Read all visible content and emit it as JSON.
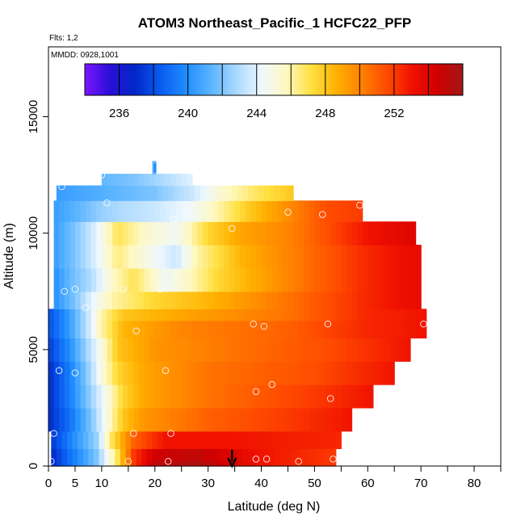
{
  "chart_data": {
    "type": "heatmap",
    "title": "ATOM3 Northeast_Pacific_1 HCFC22_PFP",
    "flights_note": "Flts: 1,2",
    "date_note": "MMDD: 0928,1001",
    "xlabel": "Latitude (deg N)",
    "ylabel": "Altitude (m)",
    "xlim": [
      0,
      85
    ],
    "ylim": [
      0,
      18000
    ],
    "x_ticks": [
      0,
      5,
      10,
      20,
      30,
      40,
      50,
      60,
      70,
      80
    ],
    "x_tick_labels": [
      "0",
      "5",
      "10",
      "20",
      "30",
      "40",
      "50",
      "60",
      "70",
      "80"
    ],
    "x_minor_ticks": [
      15,
      25,
      35,
      45,
      55,
      65,
      75,
      85
    ],
    "y_ticks": [
      0,
      5000,
      10000,
      15000
    ],
    "y_tick_labels": [
      "0",
      "5000",
      "10000",
      "15000"
    ],
    "colorbar": {
      "range": [
        234,
        256
      ],
      "ticks": [
        236,
        240,
        244,
        248,
        252
      ],
      "tick_labels": [
        "236",
        "240",
        "244",
        "248",
        "252"
      ],
      "divisions": [
        236,
        238,
        240,
        242,
        244,
        246,
        248,
        250,
        252,
        254
      ],
      "colors": [
        "#7a16ff",
        "#2a0fd6",
        "#0028c8",
        "#0a5cf0",
        "#1e8cff",
        "#5ab4ff",
        "#a8d8ff",
        "#eef8ff",
        "#fff8c0",
        "#ffe040",
        "#ffb000",
        "#ff8000",
        "#ff4a00",
        "#f01000",
        "#d00000",
        "#a01818"
      ]
    },
    "grid": false,
    "field": [
      {
        "alt": 0,
        "x0": 0.5,
        "x1": 54,
        "values": [
          [
            0,
            236.5
          ],
          [
            4,
            239
          ],
          [
            9,
            242
          ],
          [
            13,
            247
          ],
          [
            16,
            252
          ],
          [
            20,
            255
          ],
          [
            28,
            255.5
          ],
          [
            40,
            253
          ],
          [
            54,
            252
          ]
        ]
      },
      {
        "alt": 500,
        "x0": 0.5,
        "x1": 54,
        "values": [
          [
            0,
            236.5
          ],
          [
            4,
            239
          ],
          [
            9,
            242
          ],
          [
            13,
            247
          ],
          [
            16,
            252
          ],
          [
            20,
            254.5
          ],
          [
            28,
            255
          ],
          [
            40,
            253
          ],
          [
            54,
            252
          ]
        ]
      },
      {
        "alt": 1000,
        "x0": 0.5,
        "x1": 55,
        "values": [
          [
            0,
            237
          ],
          [
            4,
            239.5
          ],
          [
            9,
            242.5
          ],
          [
            12,
            247
          ],
          [
            16,
            251
          ],
          [
            22,
            253
          ],
          [
            35,
            253
          ],
          [
            55,
            252.5
          ]
        ]
      },
      {
        "alt": 2000,
        "x0": 0,
        "x1": 57,
        "values": [
          [
            0,
            237
          ],
          [
            4,
            239
          ],
          [
            8,
            242
          ],
          [
            11,
            245
          ],
          [
            14,
            248
          ],
          [
            18,
            249.5
          ],
          [
            30,
            251
          ],
          [
            45,
            252
          ],
          [
            57,
            253
          ]
        ]
      },
      {
        "alt": 3000,
        "x0": 0,
        "x1": 61,
        "values": [
          [
            0,
            237
          ],
          [
            4,
            239.5
          ],
          [
            8,
            242.5
          ],
          [
            11,
            245
          ],
          [
            14,
            247.5
          ],
          [
            18,
            249
          ],
          [
            30,
            250.5
          ],
          [
            50,
            252
          ],
          [
            61,
            253
          ]
        ]
      },
      {
        "alt": 4000,
        "x0": 0,
        "x1": 65,
        "values": [
          [
            0,
            237
          ],
          [
            4,
            239.5
          ],
          [
            7,
            242
          ],
          [
            10,
            245
          ],
          [
            13,
            247.5
          ],
          [
            18,
            249
          ],
          [
            30,
            250.5
          ],
          [
            50,
            251.5
          ],
          [
            65,
            253
          ]
        ]
      },
      {
        "alt": 5000,
        "x0": 0,
        "x1": 68,
        "values": [
          [
            0,
            237.5
          ],
          [
            4,
            240
          ],
          [
            7,
            242.5
          ],
          [
            10,
            245
          ],
          [
            13,
            248
          ],
          [
            20,
            249.5
          ],
          [
            35,
            250.5
          ],
          [
            52,
            251.5
          ],
          [
            68,
            253
          ]
        ]
      },
      {
        "alt": 6000,
        "x0": 0,
        "x1": 71,
        "values": [
          [
            0,
            238
          ],
          [
            4,
            240.5
          ],
          [
            7,
            243
          ],
          [
            10,
            246
          ],
          [
            14,
            248.5
          ],
          [
            25,
            250
          ],
          [
            45,
            251
          ],
          [
            60,
            252.5
          ],
          [
            71,
            253
          ]
        ]
      },
      {
        "alt": 6500,
        "x0": 0,
        "x1": 71,
        "values": [
          [
            0,
            238
          ],
          [
            4,
            240.5
          ],
          [
            7,
            243
          ],
          [
            10,
            246
          ],
          [
            14,
            248
          ],
          [
            25,
            249
          ],
          [
            45,
            250.5
          ],
          [
            60,
            252.5
          ],
          [
            71,
            253
          ]
        ]
      },
      {
        "alt": 7000,
        "x0": 1,
        "x1": 70,
        "values": [
          [
            1,
            240
          ],
          [
            5,
            242
          ],
          [
            8,
            244
          ],
          [
            12,
            246
          ],
          [
            20,
            247.5
          ],
          [
            30,
            248.5
          ],
          [
            45,
            250.5
          ],
          [
            60,
            252.5
          ],
          [
            70,
            253.5
          ]
        ]
      },
      {
        "alt": 8000,
        "x0": 1,
        "x1": 70,
        "values": [
          [
            1,
            240
          ],
          [
            4,
            241.5
          ],
          [
            8,
            243
          ],
          [
            12,
            245.5
          ],
          [
            16,
            247
          ],
          [
            22,
            244.5
          ],
          [
            26,
            245.5
          ],
          [
            32,
            247.5
          ],
          [
            45,
            250
          ],
          [
            60,
            252.5
          ],
          [
            70,
            253.5
          ]
        ]
      },
      {
        "alt": 9000,
        "x0": 1,
        "x1": 70,
        "values": [
          [
            1,
            240.5
          ],
          [
            5,
            242
          ],
          [
            9,
            244
          ],
          [
            13,
            246.5
          ],
          [
            18,
            245
          ],
          [
            24,
            243.5
          ],
          [
            28,
            246
          ],
          [
            36,
            248.5
          ],
          [
            45,
            250
          ],
          [
            60,
            252.5
          ],
          [
            70,
            253.5
          ]
        ]
      },
      {
        "alt": 10000,
        "x0": 1,
        "x1": 69,
        "values": [
          [
            1,
            240.5
          ],
          [
            5,
            242
          ],
          [
            9,
            244
          ],
          [
            13,
            247
          ],
          [
            18,
            245.5
          ],
          [
            24,
            244.5
          ],
          [
            30,
            247.5
          ],
          [
            36,
            249
          ],
          [
            45,
            250
          ],
          [
            60,
            253
          ],
          [
            69,
            254
          ]
        ]
      },
      {
        "alt": 11000,
        "x0": 1,
        "x1": 59,
        "values": [
          [
            1,
            240.5
          ],
          [
            6,
            241.5
          ],
          [
            10,
            242.5
          ],
          [
            14,
            243
          ],
          [
            20,
            243.5
          ],
          [
            27,
            244.5
          ],
          [
            32,
            246
          ],
          [
            38,
            248
          ],
          [
            46,
            250
          ],
          [
            52,
            251.5
          ],
          [
            59,
            252
          ]
        ]
      },
      {
        "alt": 11800,
        "x0": 1.5,
        "x1": 46,
        "values": [
          [
            1.5,
            240.5
          ],
          [
            8,
            241
          ],
          [
            14,
            241.5
          ],
          [
            20,
            242
          ],
          [
            27,
            243.5
          ],
          [
            33,
            245.5
          ],
          [
            40,
            247
          ],
          [
            46,
            248
          ]
        ]
      },
      {
        "alt": 12300,
        "x0": 10,
        "x1": 27,
        "values": [
          [
            10,
            241.5
          ],
          [
            16,
            242
          ],
          [
            22,
            243
          ],
          [
            27,
            244
          ]
        ]
      },
      {
        "alt": 12800,
        "x0": 19.5,
        "x1": 20.2,
        "values": [
          [
            19.5,
            241.5
          ],
          [
            20.2,
            241.5
          ]
        ]
      }
    ],
    "samples": [
      {
        "lat": 0.5,
        "alt": 200
      },
      {
        "lat": 1,
        "alt": 1400
      },
      {
        "lat": 2,
        "alt": 4100
      },
      {
        "lat": 2.5,
        "alt": 12000
      },
      {
        "lat": 3,
        "alt": 7500
      },
      {
        "lat": 5,
        "alt": 7600
      },
      {
        "lat": 5,
        "alt": 4000
      },
      {
        "lat": 7,
        "alt": 6800
      },
      {
        "lat": 10,
        "alt": 12500
      },
      {
        "lat": 11,
        "alt": 11300
      },
      {
        "lat": 14,
        "alt": 7600
      },
      {
        "lat": 15,
        "alt": 200
      },
      {
        "lat": 16,
        "alt": 1400
      },
      {
        "lat": 16.5,
        "alt": 5800
      },
      {
        "lat": 21,
        "alt": 7600
      },
      {
        "lat": 22,
        "alt": 4100
      },
      {
        "lat": 22.5,
        "alt": 200
      },
      {
        "lat": 23,
        "alt": 1400
      },
      {
        "lat": 23.5,
        "alt": 10600
      },
      {
        "lat": 24,
        "alt": 8300
      },
      {
        "lat": 34.5,
        "alt": 10200
      },
      {
        "lat": 38.5,
        "alt": 6100
      },
      {
        "lat": 39,
        "alt": 300
      },
      {
        "lat": 39,
        "alt": 3200
      },
      {
        "lat": 40.5,
        "alt": 6000
      },
      {
        "lat": 41,
        "alt": 300
      },
      {
        "lat": 42,
        "alt": 3500
      },
      {
        "lat": 45,
        "alt": 10900
      },
      {
        "lat": 47,
        "alt": 200
      },
      {
        "lat": 51.5,
        "alt": 10800
      },
      {
        "lat": 52.5,
        "alt": 6100
      },
      {
        "lat": 53,
        "alt": 2900
      },
      {
        "lat": 53.5,
        "alt": 300
      },
      {
        "lat": 58.5,
        "alt": 11200
      },
      {
        "lat": 68,
        "alt": 10900
      },
      {
        "lat": 70.5,
        "alt": 6100
      }
    ],
    "markers": [
      {
        "name": "arrow-marker",
        "lat": 34.5,
        "alt_top": 700,
        "alt_bottom": 0,
        "color": "#000000"
      },
      {
        "name": "blue-tick-marker",
        "lat": 20,
        "alt_top": 13000,
        "alt_bottom": 12600,
        "color": "#1e8cff"
      }
    ]
  }
}
